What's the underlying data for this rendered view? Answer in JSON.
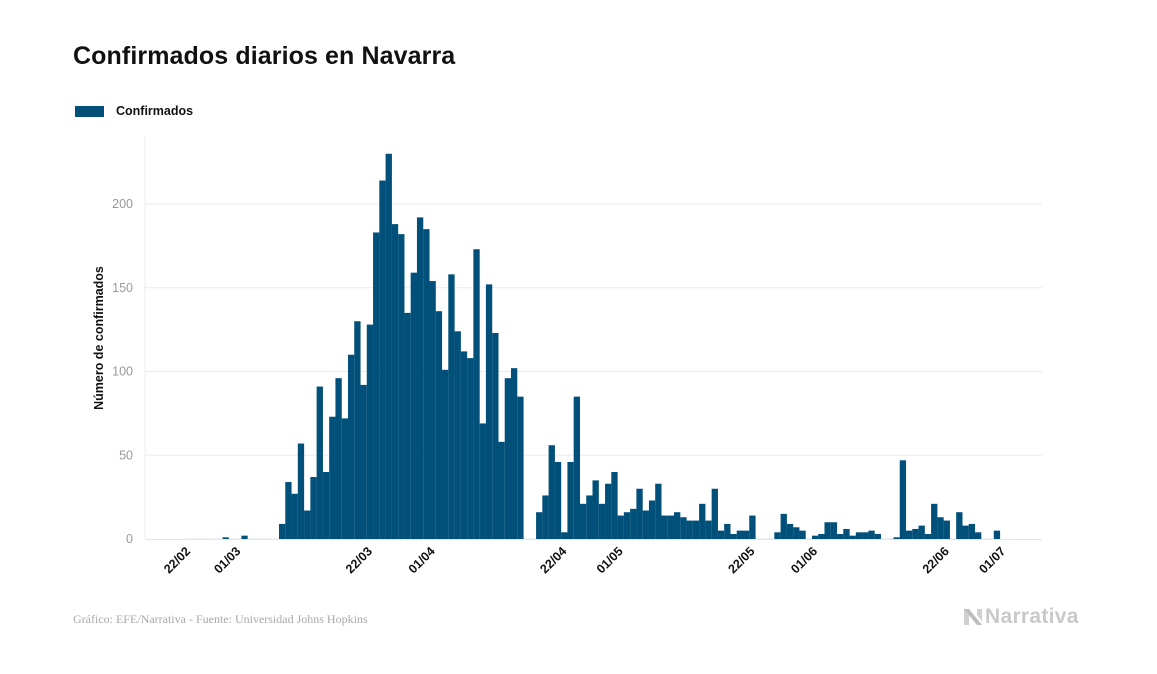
{
  "header": {
    "title": "Confirmados diarios en Navarra"
  },
  "footer": {
    "source": "Gráfico: EFE/Narrativa - Fuente: Universidad Johns Hopkins",
    "logo_text": "Narrativa",
    "logo_icon": "narrativa-n-logo-icon"
  },
  "colors": {
    "bar": "#00507a",
    "grid": "#ebebeb",
    "tick_label_y": "#999999",
    "tick_label_x": "#111111"
  },
  "chart_data": {
    "type": "bar",
    "title": "Confirmados diarios en Navarra",
    "xlabel": "",
    "ylabel": "Número de confirmados",
    "ylim": [
      0,
      240
    ],
    "yticks": [
      0,
      50,
      100,
      150,
      200
    ],
    "grid": true,
    "legend": {
      "placement": "top-left",
      "entries": [
        "Confirmados"
      ]
    },
    "start_date": "22/02/2020",
    "xtick_labels": [
      {
        "label": "22/02",
        "day_index": 0
      },
      {
        "label": "01/03",
        "day_index": 8
      },
      {
        "label": "22/03",
        "day_index": 29
      },
      {
        "label": "01/04",
        "day_index": 39
      },
      {
        "label": "22/04",
        "day_index": 60
      },
      {
        "label": "01/05",
        "day_index": 69
      },
      {
        "label": "22/05",
        "day_index": 90
      },
      {
        "label": "01/06",
        "day_index": 100
      },
      {
        "label": "22/06",
        "day_index": 121
      },
      {
        "label": "01/07",
        "day_index": 130
      }
    ],
    "series": [
      {
        "name": "Confirmados",
        "values": [
          0,
          0,
          0,
          0,
          0,
          0,
          1,
          0,
          0,
          2,
          0,
          0,
          0,
          0,
          0,
          9,
          34,
          27,
          57,
          17,
          37,
          91,
          40,
          73,
          96,
          72,
          110,
          130,
          92,
          128,
          183,
          214,
          230,
          188,
          182,
          135,
          159,
          192,
          185,
          154,
          136,
          101,
          158,
          124,
          112,
          108,
          173,
          69,
          152,
          123,
          58,
          96,
          102,
          85,
          0,
          0,
          16,
          26,
          56,
          46,
          4,
          46,
          85,
          21,
          26,
          35,
          21,
          33,
          40,
          14,
          16,
          18,
          30,
          17,
          23,
          33,
          14,
          14,
          16,
          13,
          11,
          11,
          21,
          11,
          30,
          5,
          9,
          3,
          5,
          5,
          14,
          0,
          0,
          0,
          4,
          15,
          9,
          7,
          5,
          0,
          2,
          3,
          10,
          10,
          3,
          6,
          2,
          4,
          4,
          5,
          3,
          0,
          0,
          1,
          47,
          5,
          6,
          8,
          3,
          21,
          13,
          11,
          0,
          16,
          8,
          9,
          4,
          0,
          0,
          5
        ]
      }
    ]
  }
}
